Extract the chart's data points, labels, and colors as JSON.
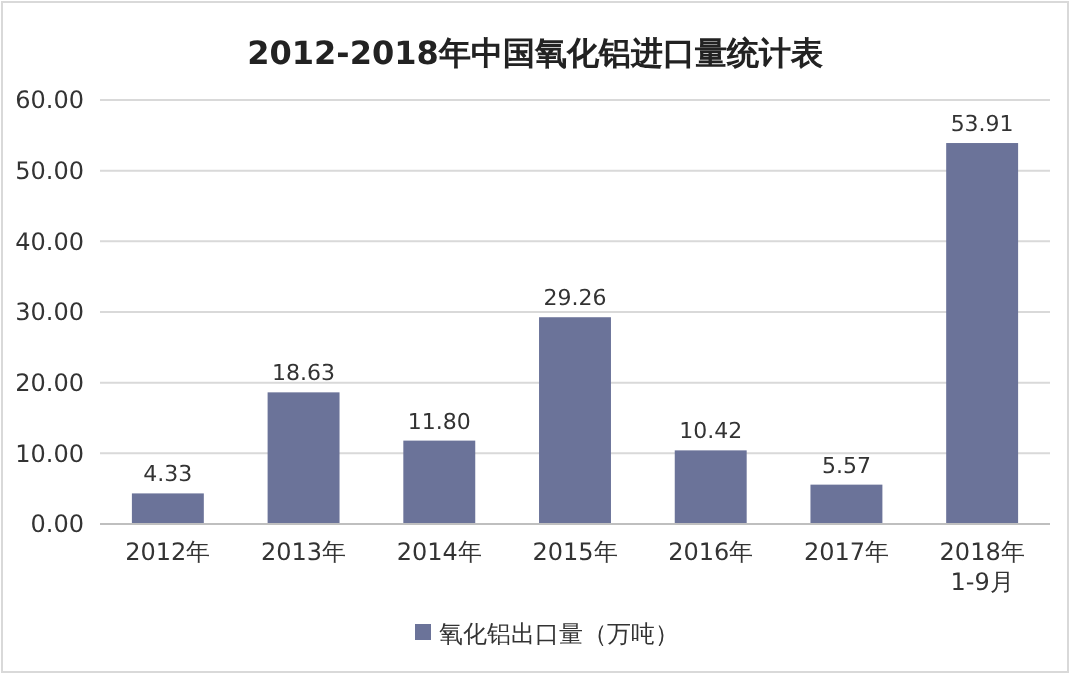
{
  "chart_data": {
    "type": "bar",
    "title": "2012-2018年中国氧化铝进口量统计表",
    "categories": [
      "2012年",
      "2013年",
      "2014年",
      "2015年",
      "2016年",
      "2017年",
      "2018年\n1-9月"
    ],
    "series": [
      {
        "name": "氧化铝出口量（万吨）",
        "color": "#6b7399",
        "values": [
          4.33,
          18.63,
          11.8,
          29.26,
          10.42,
          5.57,
          53.91
        ],
        "value_labels": [
          "4.33",
          "18.63",
          "11.80",
          "29.26",
          "10.42",
          "5.57",
          "53.91"
        ]
      }
    ],
    "ylim": [
      0,
      60
    ],
    "yticks": [
      {
        "value": 0,
        "label": "0.00"
      },
      {
        "value": 10,
        "label": "10.00"
      },
      {
        "value": 20,
        "label": "20.00"
      },
      {
        "value": 30,
        "label": "30.00"
      },
      {
        "value": 40,
        "label": "40.00"
      },
      {
        "value": 50,
        "label": "50.00"
      },
      {
        "value": 60,
        "label": "60.00"
      }
    ],
    "grid": "y",
    "legend": "bottom"
  }
}
